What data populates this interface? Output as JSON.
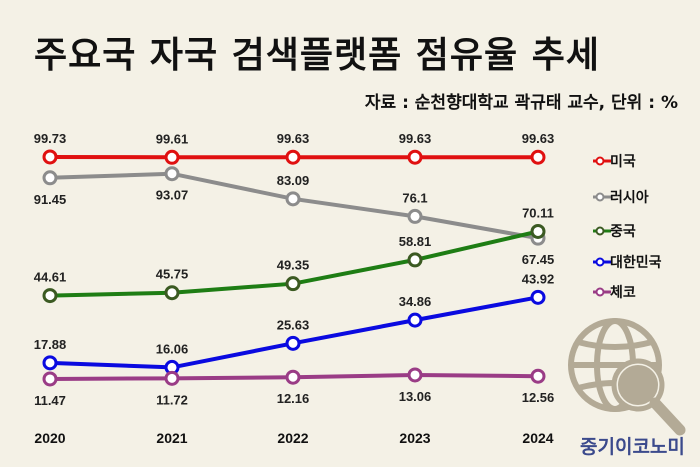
{
  "title": "주요국 자국 검색플랫폼 점유율 추세",
  "source": "자료 : 순천향대학교 곽규태 교수, 단위 : %",
  "brand": "중기이코노미",
  "chart_data": {
    "type": "line",
    "title": "주요국 자국 검색플랫폼 점유율 추세",
    "xlabel": "",
    "ylabel": "%",
    "categories": [
      "2020",
      "2021",
      "2022",
      "2023",
      "2024"
    ],
    "ylim": [
      10,
      100
    ],
    "grid": false,
    "legend_placement": "right",
    "series": [
      {
        "name": "미국",
        "color": "#e01010",
        "values": [
          99.73,
          99.61,
          99.63,
          99.63,
          99.63
        ],
        "labels": [
          "99.73",
          "99.61",
          "99.63",
          "99.63",
          "99.63"
        ]
      },
      {
        "name": "러시아",
        "color": "#8c8c8c",
        "values": [
          91.45,
          93.07,
          83.09,
          76.1,
          67.45
        ],
        "labels": [
          "91.45",
          "93.07",
          "83.09",
          "76.1",
          "67.45"
        ]
      },
      {
        "name": "중국",
        "color": "#1e7d14",
        "marker": "#3b5a22",
        "values": [
          44.61,
          45.75,
          49.35,
          58.81,
          70.11
        ],
        "labels": [
          "44.61",
          "45.75",
          "49.35",
          "58.81",
          "70.11"
        ]
      },
      {
        "name": "대한민국",
        "color": "#0a0ae0",
        "values": [
          17.88,
          16.06,
          25.63,
          34.86,
          43.92
        ],
        "labels": [
          "17.88",
          "16.06",
          "25.63",
          "34.86",
          "43.92"
        ]
      },
      {
        "name": "체코",
        "color": "#9a3c86",
        "values": [
          11.47,
          11.72,
          12.16,
          13.06,
          12.56
        ],
        "labels": [
          "11.47",
          "11.72",
          "12.16",
          "13.06",
          "12.56"
        ]
      }
    ]
  },
  "icons": {
    "logo": "globe-magnifier-icon",
    "logo_color": "#b3aa96"
  }
}
